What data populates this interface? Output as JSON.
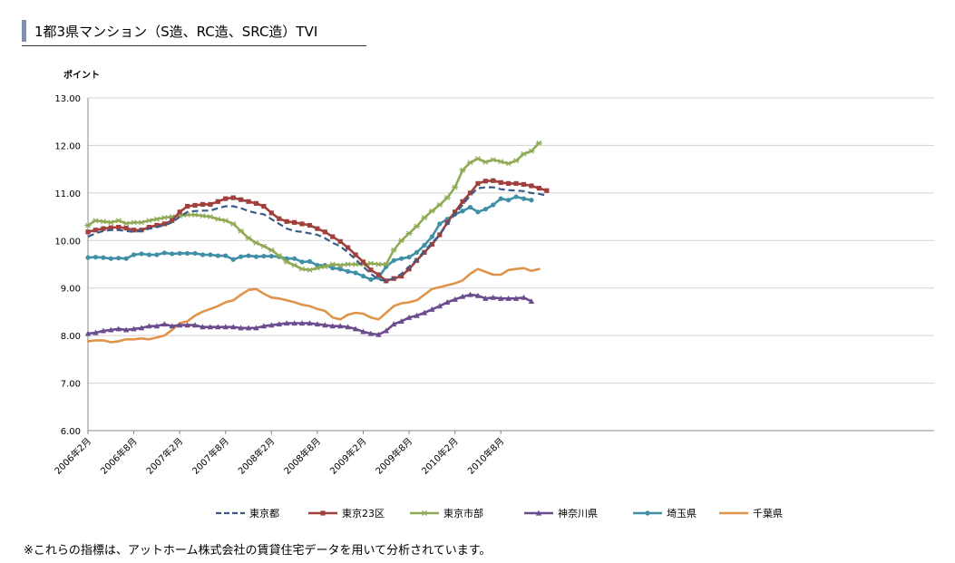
{
  "header": {
    "title": "1都3県マンション（S造、RC造、SRC造）TVI"
  },
  "footnote": "※これらの指標は、アットホーム株式会社の賃貸住宅データを用いて分析されています。",
  "chart_data": {
    "type": "line",
    "ylabel": "ポイント",
    "ylim": [
      6.0,
      13.0
    ],
    "y_ticks": [
      "6.00",
      "7.00",
      "8.00",
      "9.00",
      "10.00",
      "11.00",
      "12.00",
      "13.00"
    ],
    "x_ticks": [
      "2006年2月",
      "2006年8月",
      "2007年2月",
      "2007年8月",
      "2008年2月",
      "2008年8月",
      "2009年2月",
      "2009年8月",
      "2010年2月",
      "2010年8月"
    ],
    "x_tick_index": [
      0,
      6,
      12,
      18,
      24,
      30,
      36,
      42,
      48,
      54
    ],
    "legend_position": "bottom",
    "grid": true,
    "series": [
      {
        "name": "東京都",
        "color": "#3b5c8a",
        "style": "dashed",
        "marker": "none",
        "values": [
          10.08,
          10.15,
          10.2,
          10.22,
          10.22,
          10.2,
          10.18,
          10.2,
          10.25,
          10.28,
          10.32,
          10.38,
          10.5,
          10.6,
          10.62,
          10.63,
          10.63,
          10.68,
          10.72,
          10.72,
          10.68,
          10.62,
          10.58,
          10.55,
          10.45,
          10.35,
          10.25,
          10.2,
          10.18,
          10.15,
          10.12,
          10.05,
          9.95,
          9.88,
          9.75,
          9.6,
          9.45,
          9.3,
          9.18,
          9.15,
          9.2,
          9.3,
          9.45,
          9.6,
          9.78,
          9.95,
          10.12,
          10.35,
          10.55,
          10.75,
          10.95,
          11.1,
          11.12,
          11.12,
          11.08,
          11.06,
          11.05,
          11.04,
          11.0,
          10.98,
          10.95
        ]
      },
      {
        "name": "東京23区",
        "color": "#a0403c",
        "style": "solid",
        "marker": "square",
        "values": [
          10.18,
          10.22,
          10.25,
          10.27,
          10.28,
          10.26,
          10.22,
          10.22,
          10.28,
          10.32,
          10.35,
          10.42,
          10.6,
          10.72,
          10.74,
          10.76,
          10.76,
          10.82,
          10.88,
          10.9,
          10.86,
          10.82,
          10.78,
          10.72,
          10.58,
          10.46,
          10.4,
          10.38,
          10.35,
          10.32,
          10.25,
          10.18,
          10.08,
          9.98,
          9.85,
          9.7,
          9.55,
          9.38,
          9.28,
          9.15,
          9.2,
          9.25,
          9.4,
          9.58,
          9.75,
          9.92,
          10.12,
          10.38,
          10.6,
          10.82,
          11.0,
          11.2,
          11.25,
          11.26,
          11.22,
          11.2,
          11.2,
          11.18,
          11.15,
          11.1,
          11.05
        ]
      },
      {
        "name": "東京市部",
        "color": "#8faa54",
        "style": "solid",
        "marker": "star",
        "values": [
          10.32,
          10.42,
          10.4,
          10.38,
          10.42,
          10.36,
          10.38,
          10.38,
          10.42,
          10.45,
          10.48,
          10.5,
          10.52,
          10.54,
          10.54,
          10.52,
          10.5,
          10.45,
          10.42,
          10.35,
          10.2,
          10.05,
          9.95,
          9.88,
          9.8,
          9.68,
          9.55,
          9.48,
          9.4,
          9.38,
          9.42,
          9.45,
          9.5,
          9.48,
          9.5,
          9.5,
          9.5,
          9.52,
          9.5,
          9.5,
          9.8,
          10.0,
          10.15,
          10.3,
          10.48,
          10.62,
          10.75,
          10.9,
          11.12,
          11.48,
          11.64,
          11.72,
          11.65,
          11.7,
          11.66,
          11.62,
          11.68,
          11.82,
          11.88,
          12.05
        ]
      },
      {
        "name": "神奈川県",
        "color": "#6b4c8e",
        "style": "solid",
        "marker": "triangle",
        "values": [
          8.04,
          8.06,
          8.1,
          8.12,
          8.14,
          8.12,
          8.14,
          8.16,
          8.2,
          8.2,
          8.24,
          8.2,
          8.22,
          8.22,
          8.22,
          8.18,
          8.18,
          8.18,
          8.18,
          8.18,
          8.16,
          8.16,
          8.16,
          8.2,
          8.22,
          8.24,
          8.26,
          8.26,
          8.26,
          8.26,
          8.24,
          8.22,
          8.2,
          8.2,
          8.18,
          8.14,
          8.08,
          8.04,
          8.02,
          8.1,
          8.24,
          8.3,
          8.38,
          8.42,
          8.48,
          8.55,
          8.62,
          8.7,
          8.76,
          8.82,
          8.86,
          8.84,
          8.78,
          8.8,
          8.78,
          8.78,
          8.78,
          8.8,
          8.72
        ]
      },
      {
        "name": "埼玉県",
        "color": "#3f8fa6",
        "style": "solid",
        "marker": "circle",
        "values": [
          9.64,
          9.65,
          9.64,
          9.62,
          9.63,
          9.62,
          9.7,
          9.72,
          9.7,
          9.7,
          9.74,
          9.72,
          9.73,
          9.73,
          9.73,
          9.7,
          9.7,
          9.68,
          9.68,
          9.6,
          9.66,
          9.68,
          9.66,
          9.67,
          9.67,
          9.66,
          9.62,
          9.62,
          9.55,
          9.56,
          9.48,
          9.48,
          9.42,
          9.4,
          9.35,
          9.32,
          9.25,
          9.18,
          9.22,
          9.45,
          9.58,
          9.62,
          9.65,
          9.75,
          9.9,
          10.08,
          10.35,
          10.45,
          10.55,
          10.62,
          10.7,
          10.6,
          10.66,
          10.75,
          10.88,
          10.85,
          10.92,
          10.88,
          10.85
        ]
      },
      {
        "name": "千葉県",
        "color": "#e0944a",
        "style": "solid",
        "marker": "none",
        "values": [
          7.88,
          7.9,
          7.9,
          7.86,
          7.88,
          7.92,
          7.92,
          7.94,
          7.92,
          7.96,
          8.0,
          8.12,
          8.26,
          8.3,
          8.42,
          8.5,
          8.56,
          8.62,
          8.7,
          8.74,
          8.86,
          8.96,
          8.98,
          8.88,
          8.8,
          8.78,
          8.74,
          8.7,
          8.65,
          8.62,
          8.56,
          8.52,
          8.38,
          8.34,
          8.44,
          8.48,
          8.46,
          8.38,
          8.34,
          8.48,
          8.62,
          8.68,
          8.7,
          8.74,
          8.86,
          8.98,
          9.02,
          9.06,
          9.1,
          9.16,
          9.3,
          9.4,
          9.34,
          9.28,
          9.28,
          9.38,
          9.4,
          9.42,
          9.36,
          9.4
        ]
      }
    ]
  }
}
